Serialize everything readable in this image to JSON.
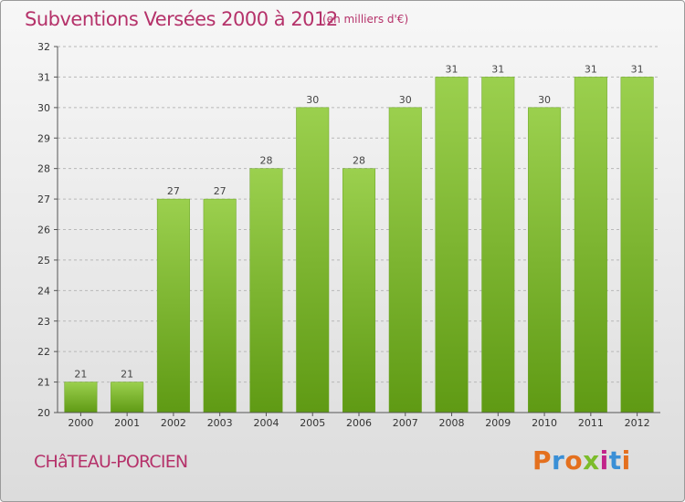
{
  "header": {
    "title": "Subventions Versées 2000 à 2012",
    "subtitle": "(en milliers d'€)"
  },
  "footer": {
    "place": "CHâTEAU-PORCIEN",
    "logo": "Proxiti"
  },
  "colors": {
    "title": "#b5326a",
    "bar_light": "#9bd04e",
    "bar_dark": "#5f9a14",
    "logo_letters": [
      "#e4701e",
      "#3a8fd6",
      "#e4701e",
      "#7cbc2a",
      "#c2248a",
      "#3a8fd6",
      "#e4701e"
    ]
  },
  "chart_data": {
    "type": "bar",
    "categories": [
      "2000",
      "2001",
      "2002",
      "2003",
      "2004",
      "2005",
      "2006",
      "2007",
      "2008",
      "2009",
      "2010",
      "2011",
      "2012"
    ],
    "values": [
      21,
      21,
      27,
      27,
      28,
      30,
      28,
      30,
      31,
      31,
      30,
      31,
      31
    ],
    "title": "Subventions Versées 2000 à 2012",
    "xlabel": "",
    "ylabel": "",
    "ylim": [
      20,
      32
    ],
    "yticks": [
      20,
      21,
      22,
      23,
      24,
      25,
      26,
      27,
      28,
      29,
      30,
      31,
      32
    ],
    "grid": true,
    "legend": "none"
  }
}
